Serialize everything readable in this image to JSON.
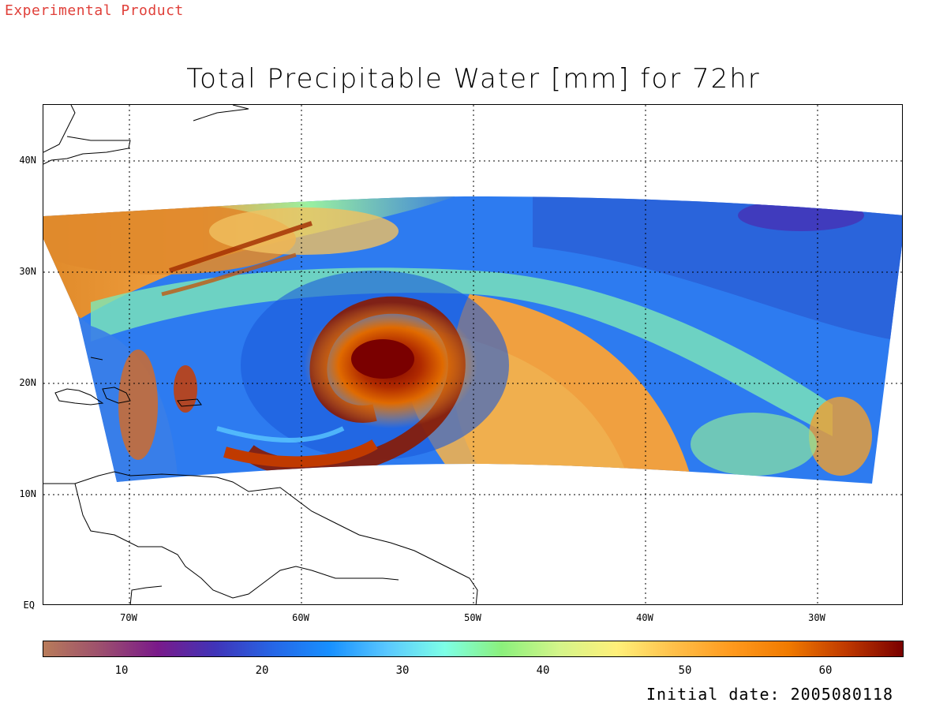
{
  "banner": "Experimental Product",
  "title": "Total Precipitable Water [mm] for 72hr",
  "footer": "Initial date: 2005080118",
  "map": {
    "lat_labels": [
      "40N",
      "30N",
      "20N",
      "10N",
      "EQ"
    ],
    "lon_labels": [
      "70W",
      "60W",
      "50W",
      "40W",
      "30W"
    ],
    "lat_values": [
      40,
      30,
      20,
      10,
      0
    ],
    "lon_values": [
      -70,
      -60,
      -50,
      -40,
      -30
    ],
    "lat_range": [
      0,
      45
    ],
    "lon_range": [
      -75,
      -25
    ],
    "gridlines": "dotted",
    "features": [
      "cyclone-spiral",
      "caribbean-islands",
      "south-american-coastline",
      "north-american-coastline"
    ]
  },
  "colorbar": {
    "tick_labels": [
      "10",
      "20",
      "30",
      "40",
      "50",
      "60"
    ],
    "tick_values": [
      10,
      20,
      30,
      40,
      50,
      60
    ],
    "range": [
      5,
      66
    ],
    "colors": [
      "#b87b5a",
      "#9c4f6e",
      "#7a1a8a",
      "#4034b8",
      "#2666e6",
      "#1890ff",
      "#5ac8ff",
      "#7dffe6",
      "#8bf07c",
      "#d4f58a",
      "#fff07a",
      "#ffc04a",
      "#ff9a1e",
      "#f07a00",
      "#c03a00",
      "#7a0000"
    ]
  },
  "chart_data": {
    "type": "heatmap",
    "title": "Total Precipitable Water [mm] for 72hr",
    "xlabel": "",
    "ylabel": "",
    "x_ticks": [
      "70W",
      "60W",
      "50W",
      "40W",
      "30W"
    ],
    "y_ticks": [
      "40N",
      "30N",
      "20N",
      "10N",
      "EQ"
    ],
    "colorbar_ticks": [
      10,
      20,
      30,
      40,
      50,
      60
    ],
    "grid": true
  }
}
